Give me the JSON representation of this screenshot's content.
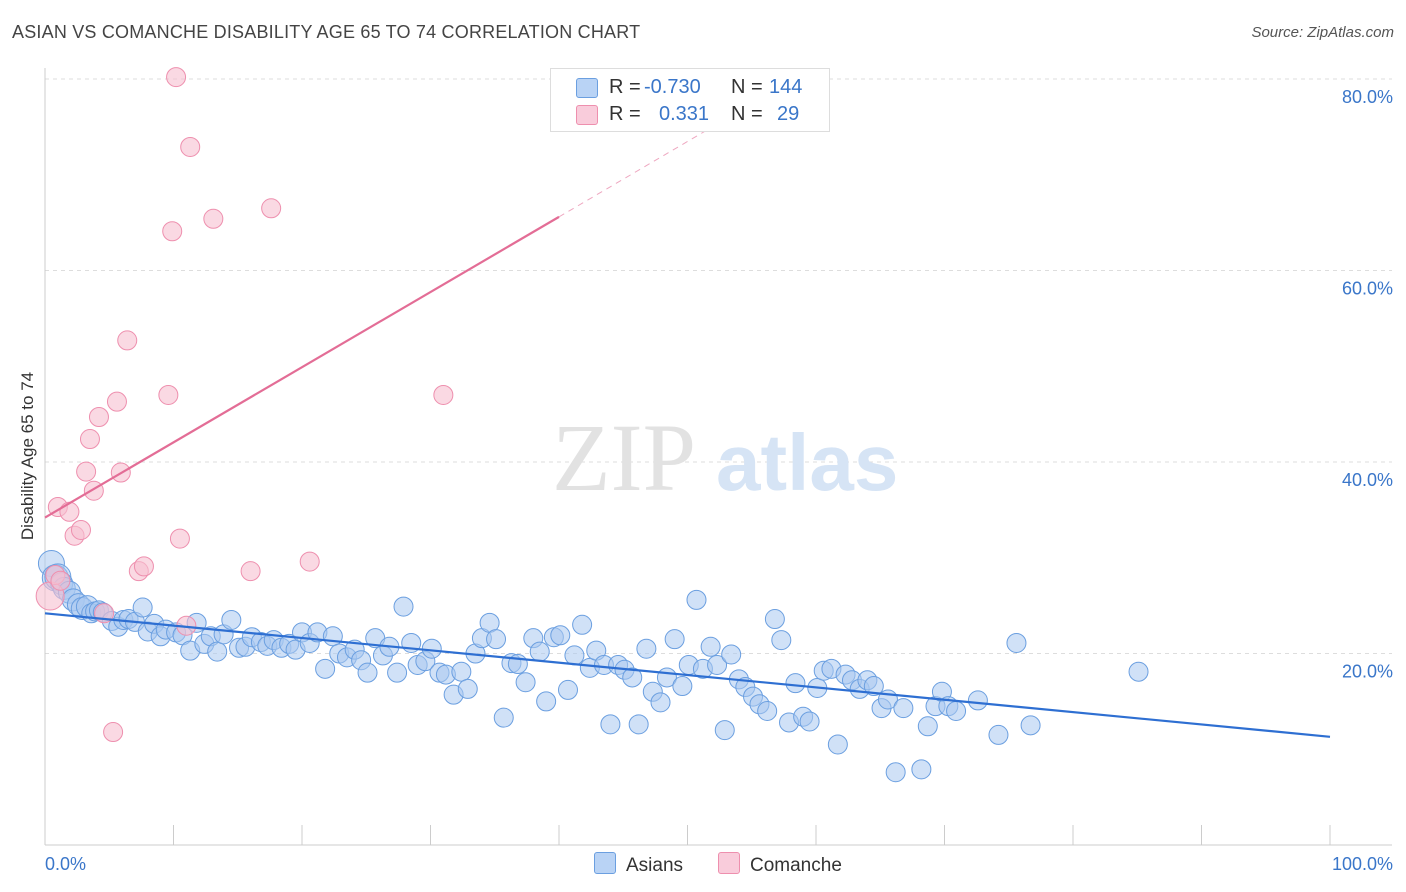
{
  "title": "ASIAN VS COMANCHE DISABILITY AGE 65 TO 74 CORRELATION CHART",
  "source": "Source: ZipAtlas.com",
  "watermark": {
    "zip": "ZIP",
    "atlas": "atlas"
  },
  "legend": {
    "asians": {
      "r_label": "R =",
      "r_value": "-0.730",
      "n_label": "N =",
      "n_value": "144"
    },
    "comanche": {
      "r_label": "R =",
      "r_value": "0.331",
      "n_label": "N =",
      "n_value": "29"
    }
  },
  "bottom_legend": {
    "asians": "Asians",
    "comanche": "Comanche"
  },
  "colors": {
    "asians_fill": "#aac8f0",
    "asians_stroke": "#6b9fe0",
    "asians_line": "#2e6fd2",
    "comanche_fill": "#f7bfd0",
    "comanche_stroke": "#ee8fae",
    "comanche_line": "#e36d96",
    "axis_label": "#3a76c9",
    "grid": "#dddddd"
  },
  "chart_data": {
    "type": "scatter",
    "title": "ASIAN VS COMANCHE DISABILITY AGE 65 TO 74 CORRELATION CHART",
    "xlabel": "",
    "ylabel": "Disability Age 65 to 74",
    "xlim": [
      0,
      100
    ],
    "ylim": [
      0,
      80
    ],
    "x_tick_labels": [
      "0.0%",
      "100.0%"
    ],
    "y_ticks": [
      20,
      40,
      60,
      80
    ],
    "y_tick_labels": [
      "20.0%",
      "40.0%",
      "60.0%",
      "80.0%"
    ],
    "grid": true,
    "legend_position": "top-center",
    "series": [
      {
        "name": "Asians",
        "r": -0.73,
        "n": 144,
        "trend": {
          "x": [
            0,
            100
          ],
          "y": [
            24.2,
            11.3
          ]
        },
        "points": [
          [
            0.5,
            29.4
          ],
          [
            0.8,
            27.9
          ],
          [
            1.0,
            28.0
          ],
          [
            1.3,
            27.3
          ],
          [
            1.5,
            26.8
          ],
          [
            1.9,
            26.4
          ],
          [
            2.2,
            25.6
          ],
          [
            2.6,
            25.1
          ],
          [
            2.9,
            24.7
          ],
          [
            3.3,
            24.9
          ],
          [
            3.6,
            24.2
          ],
          [
            3.9,
            24.4
          ],
          [
            4.2,
            24.5
          ],
          [
            4.5,
            24.3
          ],
          [
            5.2,
            23.4
          ],
          [
            5.7,
            22.8
          ],
          [
            6.1,
            23.5
          ],
          [
            6.5,
            23.6
          ],
          [
            7.0,
            23.3
          ],
          [
            7.6,
            24.8
          ],
          [
            8.0,
            22.3
          ],
          [
            8.5,
            23.1
          ],
          [
            9.0,
            21.8
          ],
          [
            9.4,
            22.5
          ],
          [
            10.2,
            22.2
          ],
          [
            10.7,
            21.9
          ],
          [
            11.3,
            20.3
          ],
          [
            11.8,
            23.2
          ],
          [
            12.4,
            21.0
          ],
          [
            12.9,
            21.8
          ],
          [
            13.4,
            20.2
          ],
          [
            13.9,
            22.0
          ],
          [
            14.5,
            23.5
          ],
          [
            15.1,
            20.6
          ],
          [
            15.6,
            20.7
          ],
          [
            16.1,
            21.7
          ],
          [
            16.8,
            21.2
          ],
          [
            17.3,
            20.8
          ],
          [
            17.8,
            21.4
          ],
          [
            18.4,
            20.6
          ],
          [
            19.0,
            21.0
          ],
          [
            19.5,
            20.4
          ],
          [
            20.0,
            22.2
          ],
          [
            20.6,
            21.1
          ],
          [
            21.2,
            22.2
          ],
          [
            21.8,
            18.4
          ],
          [
            22.4,
            21.8
          ],
          [
            22.9,
            20.0
          ],
          [
            23.5,
            19.6
          ],
          [
            24.1,
            20.4
          ],
          [
            24.6,
            19.3
          ],
          [
            25.1,
            18.0
          ],
          [
            25.7,
            21.6
          ],
          [
            26.3,
            19.8
          ],
          [
            26.8,
            20.7
          ],
          [
            27.4,
            18.0
          ],
          [
            27.9,
            24.9
          ],
          [
            28.5,
            21.1
          ],
          [
            29.0,
            18.8
          ],
          [
            29.6,
            19.2
          ],
          [
            30.1,
            20.5
          ],
          [
            30.7,
            18.0
          ],
          [
            31.2,
            17.8
          ],
          [
            31.8,
            15.7
          ],
          [
            32.4,
            18.1
          ],
          [
            32.9,
            16.3
          ],
          [
            33.5,
            20.0
          ],
          [
            34.0,
            21.6
          ],
          [
            34.6,
            23.2
          ],
          [
            35.1,
            21.5
          ],
          [
            35.7,
            13.3
          ],
          [
            36.3,
            19.0
          ],
          [
            36.8,
            18.9
          ],
          [
            37.4,
            17.0
          ],
          [
            38.0,
            21.6
          ],
          [
            38.5,
            20.2
          ],
          [
            39.0,
            15.0
          ],
          [
            39.6,
            21.7
          ],
          [
            40.1,
            21.9
          ],
          [
            40.7,
            16.2
          ],
          [
            41.2,
            19.8
          ],
          [
            41.8,
            23.0
          ],
          [
            42.4,
            18.5
          ],
          [
            42.9,
            20.3
          ],
          [
            43.5,
            18.8
          ],
          [
            44.0,
            12.6
          ],
          [
            44.6,
            18.8
          ],
          [
            45.1,
            18.3
          ],
          [
            45.7,
            17.5
          ],
          [
            46.2,
            12.6
          ],
          [
            46.8,
            20.5
          ],
          [
            47.3,
            16.0
          ],
          [
            47.9,
            14.9
          ],
          [
            48.4,
            17.5
          ],
          [
            49.0,
            21.5
          ],
          [
            49.6,
            16.6
          ],
          [
            50.1,
            18.8
          ],
          [
            50.7,
            25.6
          ],
          [
            51.2,
            18.4
          ],
          [
            51.8,
            20.7
          ],
          [
            52.3,
            18.8
          ],
          [
            52.9,
            12.0
          ],
          [
            53.4,
            19.9
          ],
          [
            54.0,
            17.3
          ],
          [
            54.5,
            16.5
          ],
          [
            55.1,
            15.5
          ],
          [
            55.6,
            14.7
          ],
          [
            56.2,
            14.0
          ],
          [
            56.8,
            23.6
          ],
          [
            57.3,
            21.4
          ],
          [
            57.9,
            12.8
          ],
          [
            58.4,
            16.9
          ],
          [
            59.0,
            13.4
          ],
          [
            59.5,
            12.9
          ],
          [
            60.1,
            16.4
          ],
          [
            60.6,
            18.2
          ],
          [
            61.2,
            18.4
          ],
          [
            61.7,
            10.5
          ],
          [
            62.3,
            17.8
          ],
          [
            62.8,
            17.2
          ],
          [
            63.4,
            16.3
          ],
          [
            64.0,
            17.2
          ],
          [
            64.5,
            16.6
          ],
          [
            65.1,
            14.3
          ],
          [
            65.6,
            15.2
          ],
          [
            66.2,
            7.6
          ],
          [
            66.8,
            14.3
          ],
          [
            68.2,
            7.9
          ],
          [
            68.7,
            12.4
          ],
          [
            69.3,
            14.5
          ],
          [
            69.8,
            16.0
          ],
          [
            70.3,
            14.5
          ],
          [
            70.9,
            14.0
          ],
          [
            72.6,
            15.1
          ],
          [
            74.2,
            11.5
          ],
          [
            75.6,
            21.1
          ],
          [
            76.7,
            12.5
          ],
          [
            85.1,
            18.1
          ]
        ]
      },
      {
        "name": "Comanche",
        "r": 0.331,
        "n": 29,
        "trend": {
          "x": [
            0,
            40
          ],
          "y": [
            34.2,
            65.6
          ]
        },
        "trend_extension": {
          "x": [
            40,
            56
          ],
          "y": [
            65.6,
            78.2
          ]
        },
        "points": [
          [
            0.4,
            26.0
          ],
          [
            0.8,
            28.2
          ],
          [
            1.2,
            27.6
          ],
          [
            1.0,
            35.3
          ],
          [
            1.9,
            34.8
          ],
          [
            2.3,
            32.3
          ],
          [
            2.8,
            32.9
          ],
          [
            3.2,
            39.0
          ],
          [
            3.5,
            42.4
          ],
          [
            3.8,
            37.0
          ],
          [
            4.2,
            44.7
          ],
          [
            4.6,
            24.2
          ],
          [
            5.3,
            11.8
          ],
          [
            5.6,
            46.3
          ],
          [
            5.9,
            38.9
          ],
          [
            6.4,
            52.7
          ],
          [
            7.3,
            28.6
          ],
          [
            7.7,
            29.1
          ],
          [
            9.6,
            47.0
          ],
          [
            9.9,
            64.1
          ],
          [
            10.2,
            80.2
          ],
          [
            10.5,
            32.0
          ],
          [
            11.0,
            22.9
          ],
          [
            11.3,
            72.9
          ],
          [
            13.1,
            65.4
          ],
          [
            16.0,
            28.6
          ],
          [
            17.6,
            66.5
          ],
          [
            20.6,
            29.6
          ],
          [
            31.0,
            47.0
          ]
        ]
      }
    ]
  }
}
